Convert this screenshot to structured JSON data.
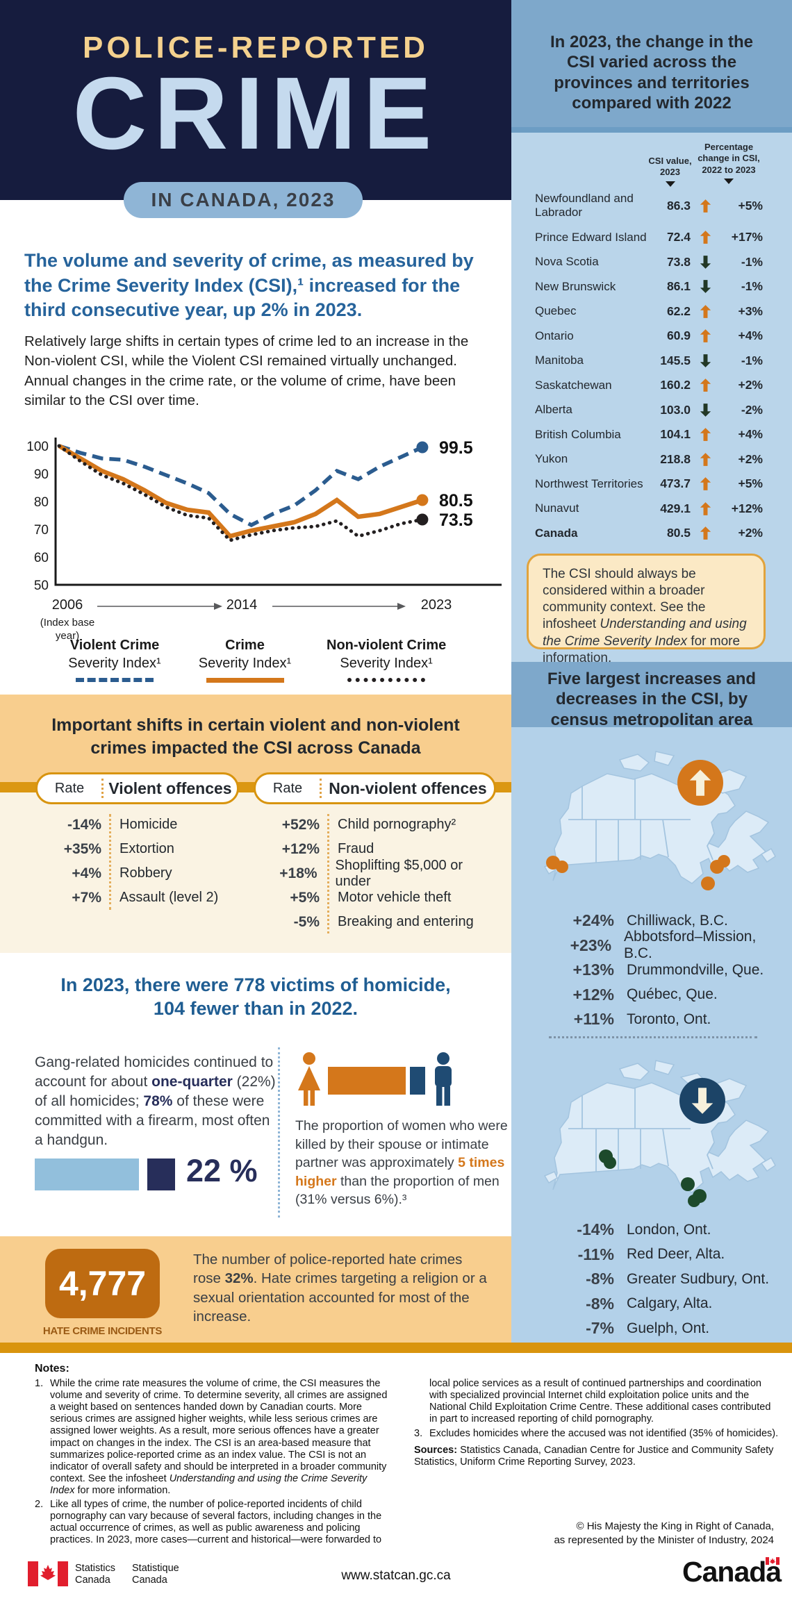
{
  "header": {
    "kicker": "POLICE-REPORTED",
    "title": "CRIME",
    "badge": "IN CANADA, 2023"
  },
  "intro": {
    "heading": "The volume and severity of crime, as measured by the Crime Severity Index (CSI),¹ increased for the third consecutive year, up 2% in 2023.",
    "body": "Relatively large shifts in certain types of crime led to an increase in the Non-violent CSI, while the Violent CSI remained virtually unchanged. Annual changes in the crime rate, or the volume of crime, have been similar to the CSI over time."
  },
  "chart_data": {
    "type": "line",
    "x": [
      2006,
      2007,
      2008,
      2009,
      2010,
      2011,
      2012,
      2013,
      2014,
      2015,
      2016,
      2017,
      2018,
      2019,
      2020,
      2021,
      2022,
      2023
    ],
    "ylim": [
      50,
      100
    ],
    "yticks": [
      100,
      90,
      80,
      70,
      60,
      50
    ],
    "x_axis_labels": [
      "2006",
      "2014",
      "2023"
    ],
    "x_axis_note": "(Index base year)",
    "grid": false,
    "legend_position": "bottom",
    "series": [
      {
        "name": "Violent Crime Severity Index¹",
        "legend1": "Violent Crime",
        "legend2": "Severity Index¹",
        "style": "dashed",
        "color": "#2B5C8F",
        "end_label": "99.5",
        "values": [
          100,
          97.5,
          95.5,
          95,
          92.5,
          89.5,
          86.5,
          83,
          75.5,
          71.5,
          75.5,
          78.5,
          84,
          91,
          88,
          92.5,
          96,
          99.5
        ]
      },
      {
        "name": "Crime Severity Index¹",
        "legend1": "Crime",
        "legend2": "Severity Index¹",
        "style": "solid",
        "color": "#D4771B",
        "end_label": "80.5",
        "values": [
          100,
          95.5,
          91,
          88,
          84,
          79.5,
          77,
          76,
          67.5,
          69.5,
          71,
          72.5,
          75.5,
          80.5,
          74.5,
          75.5,
          78,
          80.5
        ]
      },
      {
        "name": "Non-violent Crime Severity Index¹",
        "legend1": "Non-violent Crime",
        "legend2": "Severity Index¹",
        "style": "dotted",
        "color": "#231F20",
        "end_label": "73.5",
        "values": [
          100,
          94.5,
          89.5,
          86.5,
          82.5,
          78,
          75,
          74,
          66,
          68,
          69.5,
          70.5,
          71,
          73,
          67.5,
          69.5,
          72,
          73.5
        ]
      }
    ]
  },
  "shifts": {
    "heading": "Important shifts in certain violent and non-violent crimes impacted the CSI across Canada",
    "rate_header": "Rate",
    "violent_header": "Violent offences",
    "nonviolent_header": "Non-violent offences",
    "violent_rows": [
      {
        "rate": "-14%",
        "label": "Homicide"
      },
      {
        "rate": "+35%",
        "label": "Extortion"
      },
      {
        "rate": "+4%",
        "label": "Robbery"
      },
      {
        "rate": "+7%",
        "label": "Assault (level 2)"
      }
    ],
    "nonviolent_rows": [
      {
        "rate": "+52%",
        "label": "Child pornography²"
      },
      {
        "rate": "+12%",
        "label": "Fraud"
      },
      {
        "rate": "+18%",
        "label": "Shoplifting $5,000 or under"
      },
      {
        "rate": "+5%",
        "label": "Motor vehicle theft"
      },
      {
        "rate": "-5%",
        "label": "Breaking and entering"
      }
    ]
  },
  "homicide": {
    "heading1": "In 2023, there were 778 victims of homicide,",
    "heading2": "104 fewer than in 2022.",
    "gang_pre": "Gang-related homicides continued to account for about ",
    "gang_bold1": "one-quarter",
    "gang_mid": " (22%) of all homicides; ",
    "gang_bold2": "78%",
    "gang_post": " of these were committed with a firearm, most often a handgun.",
    "pct": "22 %",
    "spouse_pre": "The proportion of women who were killed by their spouse or intimate partner was approximately ",
    "spouse_bold": "5 times higher",
    "spouse_post": " than the proportion of men (31% versus 6%).³"
  },
  "hate": {
    "count": "4,777",
    "label": "HATE CRIME INCIDENTS",
    "text_pre": "The number of police-reported hate crimes rose ",
    "text_bold": "32%",
    "text_post": ". Hate crimes targeting a religion or a sexual orientation accounted for most of the increase."
  },
  "provinces": {
    "title": "In 2023, the change in the CSI varied across the provinces and territories compared with 2022",
    "col1a": "CSI value,",
    "col1b": "2023",
    "col2a": "Percentage",
    "col2b": "change in CSI,",
    "col2c": "2022 to 2023",
    "rows": [
      {
        "name": "Newfoundland and Labrador",
        "value": "86.3",
        "dir": "up",
        "change": "+5%",
        "cls": "row-tall"
      },
      {
        "name": "Prince Edward Island",
        "value": "72.4",
        "dir": "up",
        "change": "+17%",
        "cls": ""
      },
      {
        "name": "Nova Scotia",
        "value": "73.8",
        "dir": "down",
        "change": "-1%",
        "cls": ""
      },
      {
        "name": "New Brunswick",
        "value": "86.1",
        "dir": "down",
        "change": "-1%",
        "cls": ""
      },
      {
        "name": "Quebec",
        "value": "62.2",
        "dir": "up",
        "change": "+3%",
        "cls": ""
      },
      {
        "name": "Ontario",
        "value": "60.9",
        "dir": "up",
        "change": "+4%",
        "cls": ""
      },
      {
        "name": "Manitoba",
        "value": "145.5",
        "dir": "down",
        "change": "-1%",
        "cls": ""
      },
      {
        "name": "Saskatchewan",
        "value": "160.2",
        "dir": "up",
        "change": "+2%",
        "cls": ""
      },
      {
        "name": "Alberta",
        "value": "103.0",
        "dir": "down",
        "change": "-2%",
        "cls": ""
      },
      {
        "name": "British Columbia",
        "value": "104.1",
        "dir": "up",
        "change": "+4%",
        "cls": ""
      },
      {
        "name": "Yukon",
        "value": "218.8",
        "dir": "up",
        "change": "+2%",
        "cls": ""
      },
      {
        "name": "Northwest Territories",
        "value": "473.7",
        "dir": "up",
        "change": "+5%",
        "cls": ""
      },
      {
        "name": "Nunavut",
        "value": "429.1",
        "dir": "up",
        "change": "+12%",
        "cls": ""
      },
      {
        "name": "Canada",
        "value": "80.5",
        "dir": "up",
        "change": "+2%",
        "cls": "row-bold"
      }
    ]
  },
  "csi_note": {
    "pre": "The CSI should always be considered within a broader community context. See the infosheet ",
    "em": "Understanding and using the Crime Severity Index",
    "post": " for more information."
  },
  "cma": {
    "heading": "Five largest increases and decreases in the CSI, by census metropolitan area",
    "increases": [
      {
        "rate": "+24%",
        "city": "Chilliwack, B.C."
      },
      {
        "rate": "+23%",
        "city": "Abbotsford–Mission, B.C."
      },
      {
        "rate": "+13%",
        "city": "Drummondville, Que."
      },
      {
        "rate": "+12%",
        "city": "Québec, Que."
      },
      {
        "rate": "+11%",
        "city": "Toronto, Ont."
      }
    ],
    "decreases": [
      {
        "rate": "-14%",
        "city": "London, Ont."
      },
      {
        "rate": "-11%",
        "city": "Red Deer, Alta."
      },
      {
        "rate": "-8%",
        "city": "Greater Sudbury, Ont."
      },
      {
        "rate": "-8%",
        "city": "Calgary, Alta."
      },
      {
        "rate": "-7%",
        "city": "Guelph, Ont."
      }
    ]
  },
  "notes": {
    "title": "Notes:",
    "n1num": "1.",
    "n1pre": "While the crime rate measures the volume of crime, the CSI measures the volume and severity of crime. To determine severity, all crimes are assigned a weight based on sentences handed down by Canadian courts. More serious crimes are assigned higher weights, while less serious crimes are assigned lower weights. As a result, more serious offences have a greater impact on changes in the index. The CSI is an area-based measure that summarizes police-reported crime as an index value. The CSI is not an indicator of overall safety and should be interpreted in a broader community context. See the infosheet ",
    "n1em": "Understanding and using the Crime Severity Index",
    "n1post": " for more information.",
    "n2num": "2.",
    "n2": "Like all types of crime, the number of police-reported incidents of child pornography can vary because of several factors, including changes in the actual occurrence of crimes, as well as public awareness and policing practices. In 2023, more cases—current and historical—were forwarded to",
    "n2b": "local police services as a result of continued partnerships and coordination with specialized provincial Internet child exploitation police units and the National Child Exploitation Crime Centre. These additional cases contributed in part to increased reporting of child pornography.",
    "n3num": "3.",
    "n3": "Excludes homicides where the accused was not identified (35% of homicides).",
    "sources_label": "Sources:",
    "sources_text": " Statistics Canada, Canadian Centre for Justice and Community Safety Statistics, Uniform Crime Reporting Survey, 2023.",
    "copyright1": "© His Majesty the King in Right of Canada,",
    "copyright2": "as represented by the Minister of Industry, 2024"
  },
  "footer": {
    "statcan_en1": "Statistics",
    "statcan_en2": "Canada",
    "statcan_fr1": "Statistique",
    "statcan_fr2": "Canada",
    "url": "www.statcan.gc.ca",
    "wordmark": "Canada"
  }
}
